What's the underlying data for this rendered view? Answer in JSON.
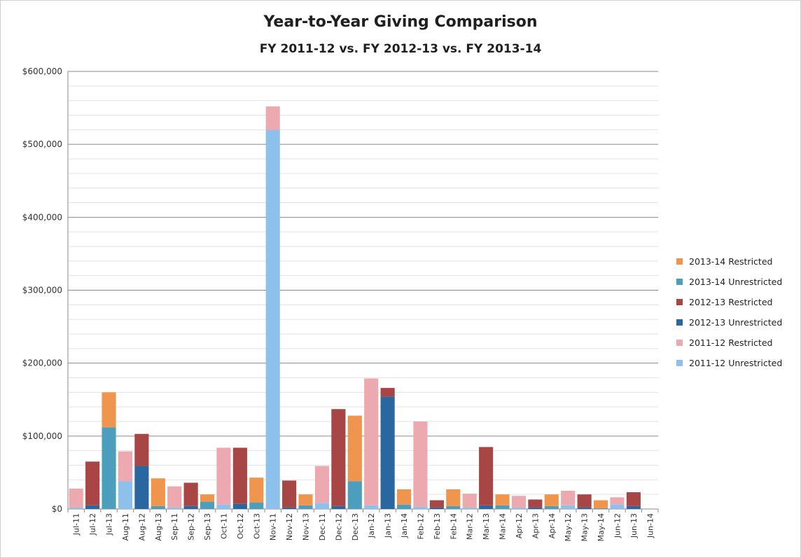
{
  "chart_data": {
    "type": "bar",
    "stacked": true,
    "title": "Year-to-Year Giving Comparison",
    "subtitle": "FY 2011-12 vs. FY 2012-13 vs. FY 2013-14",
    "xlabel": "",
    "ylabel": "",
    "ylim": [
      0,
      600000
    ],
    "yticks": [
      0,
      100000,
      200000,
      300000,
      400000,
      500000,
      600000
    ],
    "ytick_labels": [
      "$0",
      "$100,000",
      "$200,000",
      "$300,000",
      "$400,000",
      "$500,000",
      "$600,000"
    ],
    "grid": true,
    "legend_position": "right",
    "categories": [
      "Jul-11",
      "Jul-12",
      "Jul-13",
      "Aug-11",
      "Aug-12",
      "Aug-13",
      "Sep-11",
      "Sep-12",
      "Sep-13",
      "Oct-11",
      "Oct-12",
      "Oct-13",
      "Nov-11",
      "Nov-12",
      "Nov-13",
      "Dec-11",
      "Dec-12",
      "Dec-13",
      "Jan-12",
      "Jan-13",
      "Jan-14",
      "Feb-12",
      "Feb-13",
      "Feb-14",
      "Mar-12",
      "Mar-13",
      "Mar-14",
      "Apr-12",
      "Apr-13",
      "Apr-14",
      "May-12",
      "May-13",
      "May-14",
      "Jun-12",
      "Jun-13",
      "Jun-14"
    ],
    "series": [
      {
        "name": "2013-14 Restricted",
        "color": "#f0954d",
        "values": [
          0,
          0,
          48000,
          0,
          0,
          38000,
          0,
          0,
          10000,
          0,
          0,
          34000,
          0,
          0,
          15000,
          0,
          0,
          90000,
          0,
          0,
          21000,
          0,
          0,
          23000,
          0,
          0,
          15000,
          0,
          0,
          16000,
          0,
          0,
          11000,
          0,
          0,
          0
        ]
      },
      {
        "name": "2013-14 Unrestricted",
        "color": "#4d9ebc",
        "values": [
          0,
          0,
          112000,
          0,
          0,
          4000,
          0,
          0,
          10000,
          0,
          0,
          9000,
          0,
          0,
          5000,
          0,
          0,
          38000,
          0,
          0,
          6000,
          0,
          0,
          4000,
          0,
          0,
          5000,
          0,
          0,
          4000,
          0,
          0,
          1000,
          0,
          0,
          0
        ]
      },
      {
        "name": "2012-13 Restricted",
        "color": "#a84645",
        "values": [
          0,
          60000,
          0,
          0,
          44000,
          0,
          0,
          32000,
          0,
          0,
          77000,
          0,
          0,
          37000,
          0,
          0,
          133000,
          0,
          0,
          12000,
          0,
          0,
          10000,
          0,
          0,
          80000,
          0,
          0,
          11000,
          0,
          0,
          18000,
          0,
          0,
          19000,
          0
        ]
      },
      {
        "name": "2012-13 Unrestricted",
        "color": "#2a67a0",
        "values": [
          0,
          5000,
          0,
          0,
          59000,
          0,
          0,
          4000,
          0,
          0,
          7000,
          0,
          0,
          2000,
          0,
          0,
          4000,
          0,
          0,
          154000,
          0,
          0,
          2000,
          0,
          0,
          5000,
          0,
          0,
          2000,
          0,
          0,
          2000,
          0,
          0,
          4000,
          0
        ]
      },
      {
        "name": "2011-12 Restricted",
        "color": "#eda9b0",
        "values": [
          26000,
          0,
          0,
          41000,
          0,
          0,
          29000,
          0,
          0,
          78000,
          0,
          0,
          32000,
          0,
          0,
          51000,
          0,
          0,
          174000,
          0,
          0,
          117000,
          0,
          0,
          19000,
          0,
          0,
          16000,
          0,
          0,
          20000,
          0,
          0,
          10000,
          0,
          0
        ]
      },
      {
        "name": "2011-12 Unrestricted",
        "color": "#8dc0ea",
        "values": [
          2000,
          0,
          0,
          38000,
          0,
          0,
          2000,
          0,
          0,
          6000,
          0,
          0,
          520000,
          0,
          0,
          8000,
          0,
          0,
          5000,
          0,
          0,
          3000,
          0,
          0,
          2000,
          0,
          0,
          2000,
          0,
          0,
          5000,
          0,
          0,
          6000,
          0,
          0
        ]
      }
    ]
  }
}
